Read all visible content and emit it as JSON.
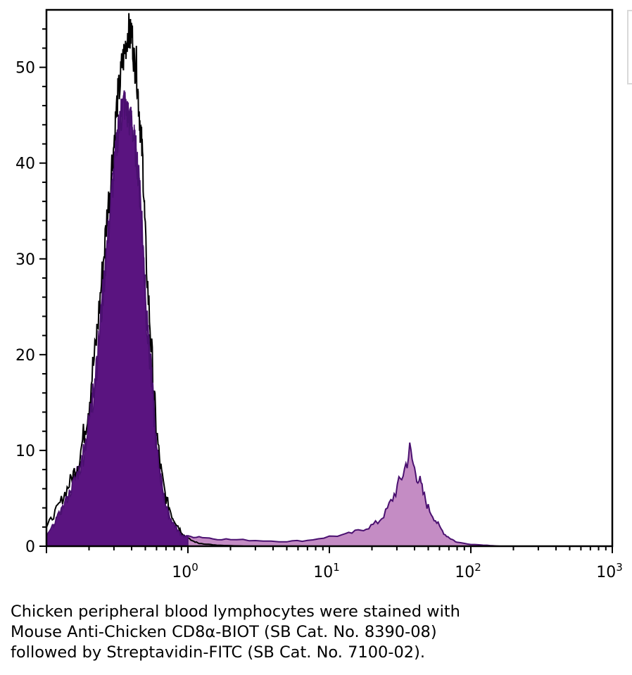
{
  "chart_data": {
    "type": "area",
    "title": "",
    "xlabel": "",
    "ylabel": "",
    "x_scale": "log",
    "xlim": [
      0.1,
      1000
    ],
    "ylim": [
      0,
      56
    ],
    "grid": false,
    "colors": {
      "negative_fill": "#5a1480",
      "negative_outline": "#000000",
      "positive_fill": "#c48cc4",
      "positive_outline": "#4a1070",
      "axis": "#000000"
    },
    "y_ticks": [
      "0",
      "10",
      "20",
      "30",
      "40",
      "50"
    ],
    "x_ticks": [
      {
        "base": "10",
        "exp": "0"
      },
      {
        "base": "10",
        "exp": "1"
      },
      {
        "base": "10",
        "exp": "2"
      },
      {
        "base": "10",
        "exp": "3"
      }
    ],
    "series": [
      {
        "role": "negative-control",
        "x": [
          0.1,
          0.11,
          0.12,
          0.13,
          0.14,
          0.15,
          0.16,
          0.17,
          0.18,
          0.19,
          0.2,
          0.21,
          0.22,
          0.23,
          0.24,
          0.25,
          0.26,
          0.27,
          0.28,
          0.29,
          0.3,
          0.31,
          0.32,
          0.33,
          0.34,
          0.35,
          0.36,
          0.37,
          0.38,
          0.39,
          0.4,
          0.41,
          0.42,
          0.43,
          0.44,
          0.45,
          0.46,
          0.47,
          0.48,
          0.49,
          0.5,
          0.52,
          0.54,
          0.56,
          0.58,
          0.6,
          0.63,
          0.66,
          0.7,
          0.74,
          0.78,
          0.82,
          0.86,
          0.9,
          0.95,
          1.0,
          1.1,
          1.2,
          1.4,
          1.6,
          2.0,
          2.5,
          3.0
        ],
        "y": [
          2,
          3,
          4,
          5,
          6,
          7,
          8,
          9,
          11,
          13,
          15,
          18,
          20,
          23,
          26,
          29,
          32,
          35,
          37,
          40,
          42,
          45,
          47,
          48,
          50,
          51,
          52,
          53,
          54,
          53,
          54,
          52,
          50,
          51,
          48,
          46,
          44,
          42,
          40,
          36,
          32,
          27,
          23,
          19,
          15,
          12,
          9,
          7,
          5,
          4,
          3,
          2.5,
          2,
          1.5,
          1,
          0.8,
          0.5,
          0.3,
          0.2,
          0.1,
          0.05,
          0,
          0
        ]
      },
      {
        "role": "stained",
        "x": [
          0.1,
          0.11,
          0.12,
          0.13,
          0.14,
          0.15,
          0.16,
          0.17,
          0.18,
          0.19,
          0.2,
          0.21,
          0.22,
          0.23,
          0.24,
          0.25,
          0.26,
          0.27,
          0.28,
          0.29,
          0.3,
          0.31,
          0.32,
          0.33,
          0.34,
          0.35,
          0.36,
          0.37,
          0.38,
          0.39,
          0.4,
          0.41,
          0.42,
          0.43,
          0.44,
          0.45,
          0.46,
          0.47,
          0.48,
          0.49,
          0.5,
          0.52,
          0.54,
          0.56,
          0.58,
          0.6,
          0.63,
          0.66,
          0.7,
          0.74,
          0.78,
          0.82,
          0.86,
          0.9,
          0.95,
          1.0,
          1.2,
          1.5,
          2.0,
          3.0,
          5.0,
          7.0,
          10,
          13,
          16,
          19,
          22,
          25,
          28,
          31,
          34,
          37,
          40,
          43,
          46,
          50,
          55,
          60,
          66,
          72,
          80,
          100,
          130,
          160
        ],
        "y": [
          1,
          2,
          3,
          4,
          5,
          6,
          7,
          8,
          9,
          11,
          13,
          15,
          17,
          20,
          23,
          26,
          29,
          32,
          34,
          37,
          39,
          41,
          43,
          44,
          45,
          46,
          46,
          45,
          45,
          44,
          45,
          43,
          42,
          41,
          40,
          38,
          36,
          34,
          32,
          29,
          26,
          22,
          19,
          16,
          13,
          10,
          8,
          6,
          4,
          3,
          2.5,
          2,
          1.5,
          1.2,
          1,
          1,
          1,
          0.8,
          0.7,
          0.6,
          0.5,
          0.6,
          1,
          1.2,
          1.6,
          2,
          2.5,
          3.5,
          5,
          6.5,
          8,
          10,
          8,
          7,
          5.5,
          4,
          3,
          2,
          1.2,
          0.8,
          0.4,
          0.2,
          0.1,
          0
        ]
      }
    ]
  },
  "caption": {
    "line1": "Chicken peripheral blood lymphocytes were stained with",
    "line2": "Mouse Anti-Chicken CD8α-BIOT (SB Cat. No. 8390-08)",
    "line3": "followed by Streptavidin-FITC (SB Cat. No. 7100-02)."
  }
}
